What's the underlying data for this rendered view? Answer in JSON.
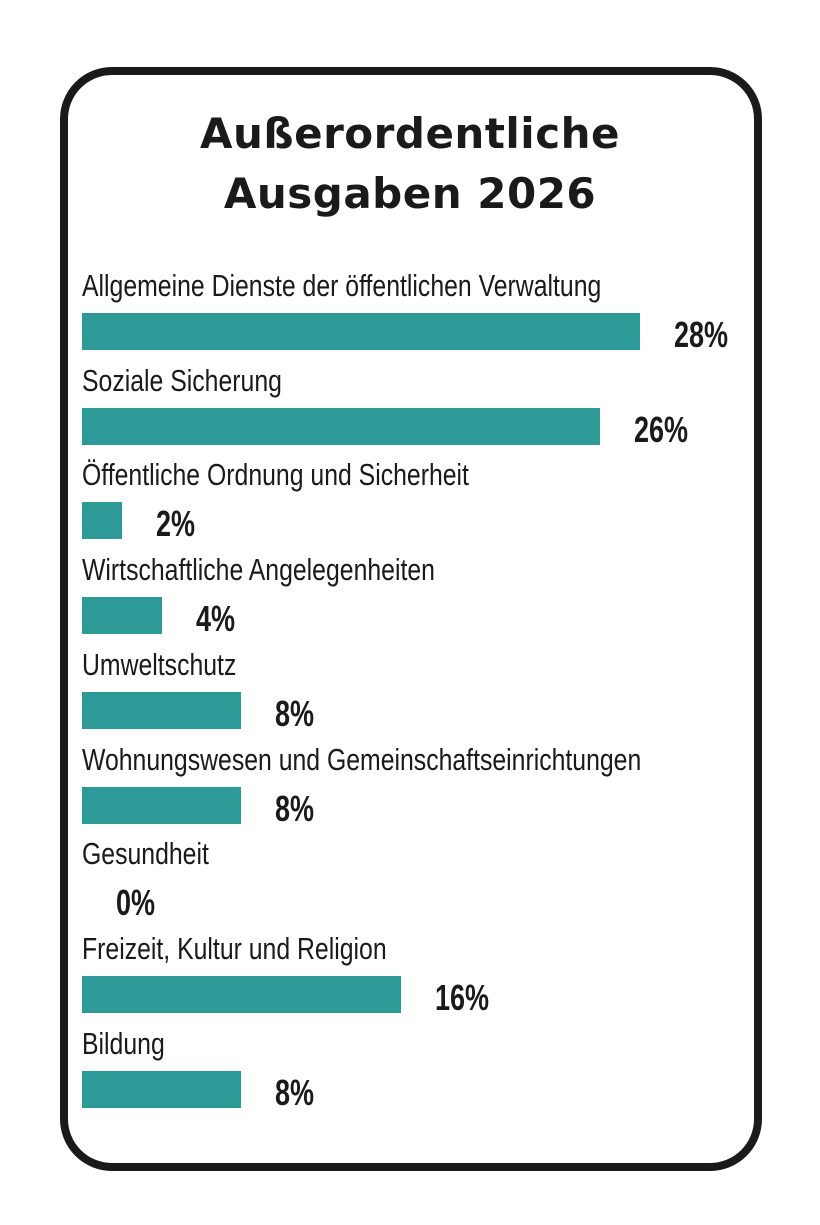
{
  "chart_data": {
    "type": "bar",
    "orientation": "horizontal",
    "title": [
      "Außerordentliche",
      "Ausgaben 2026"
    ],
    "bar_color": "#2e9a98",
    "categories": [
      "Allgemeine Dienste der öffentlichen Verwaltung",
      "Soziale Sicherung",
      "Öffentliche Ordnung und Sicherheit",
      "Wirtschaftliche Angelegenheiten",
      "Umweltschutz",
      "Wohnungswesen und Gemeinschaftseinrichtungen",
      "Gesundheit",
      "Freizeit, Kultur und Religion",
      "Bildung"
    ],
    "values": [
      28,
      26,
      2,
      4,
      8,
      8,
      0,
      16,
      8
    ],
    "value_labels": [
      "28%",
      "26%",
      "2%",
      "4%",
      "8%",
      "8%",
      "0%",
      "16%",
      "8%"
    ],
    "unit": "%"
  }
}
